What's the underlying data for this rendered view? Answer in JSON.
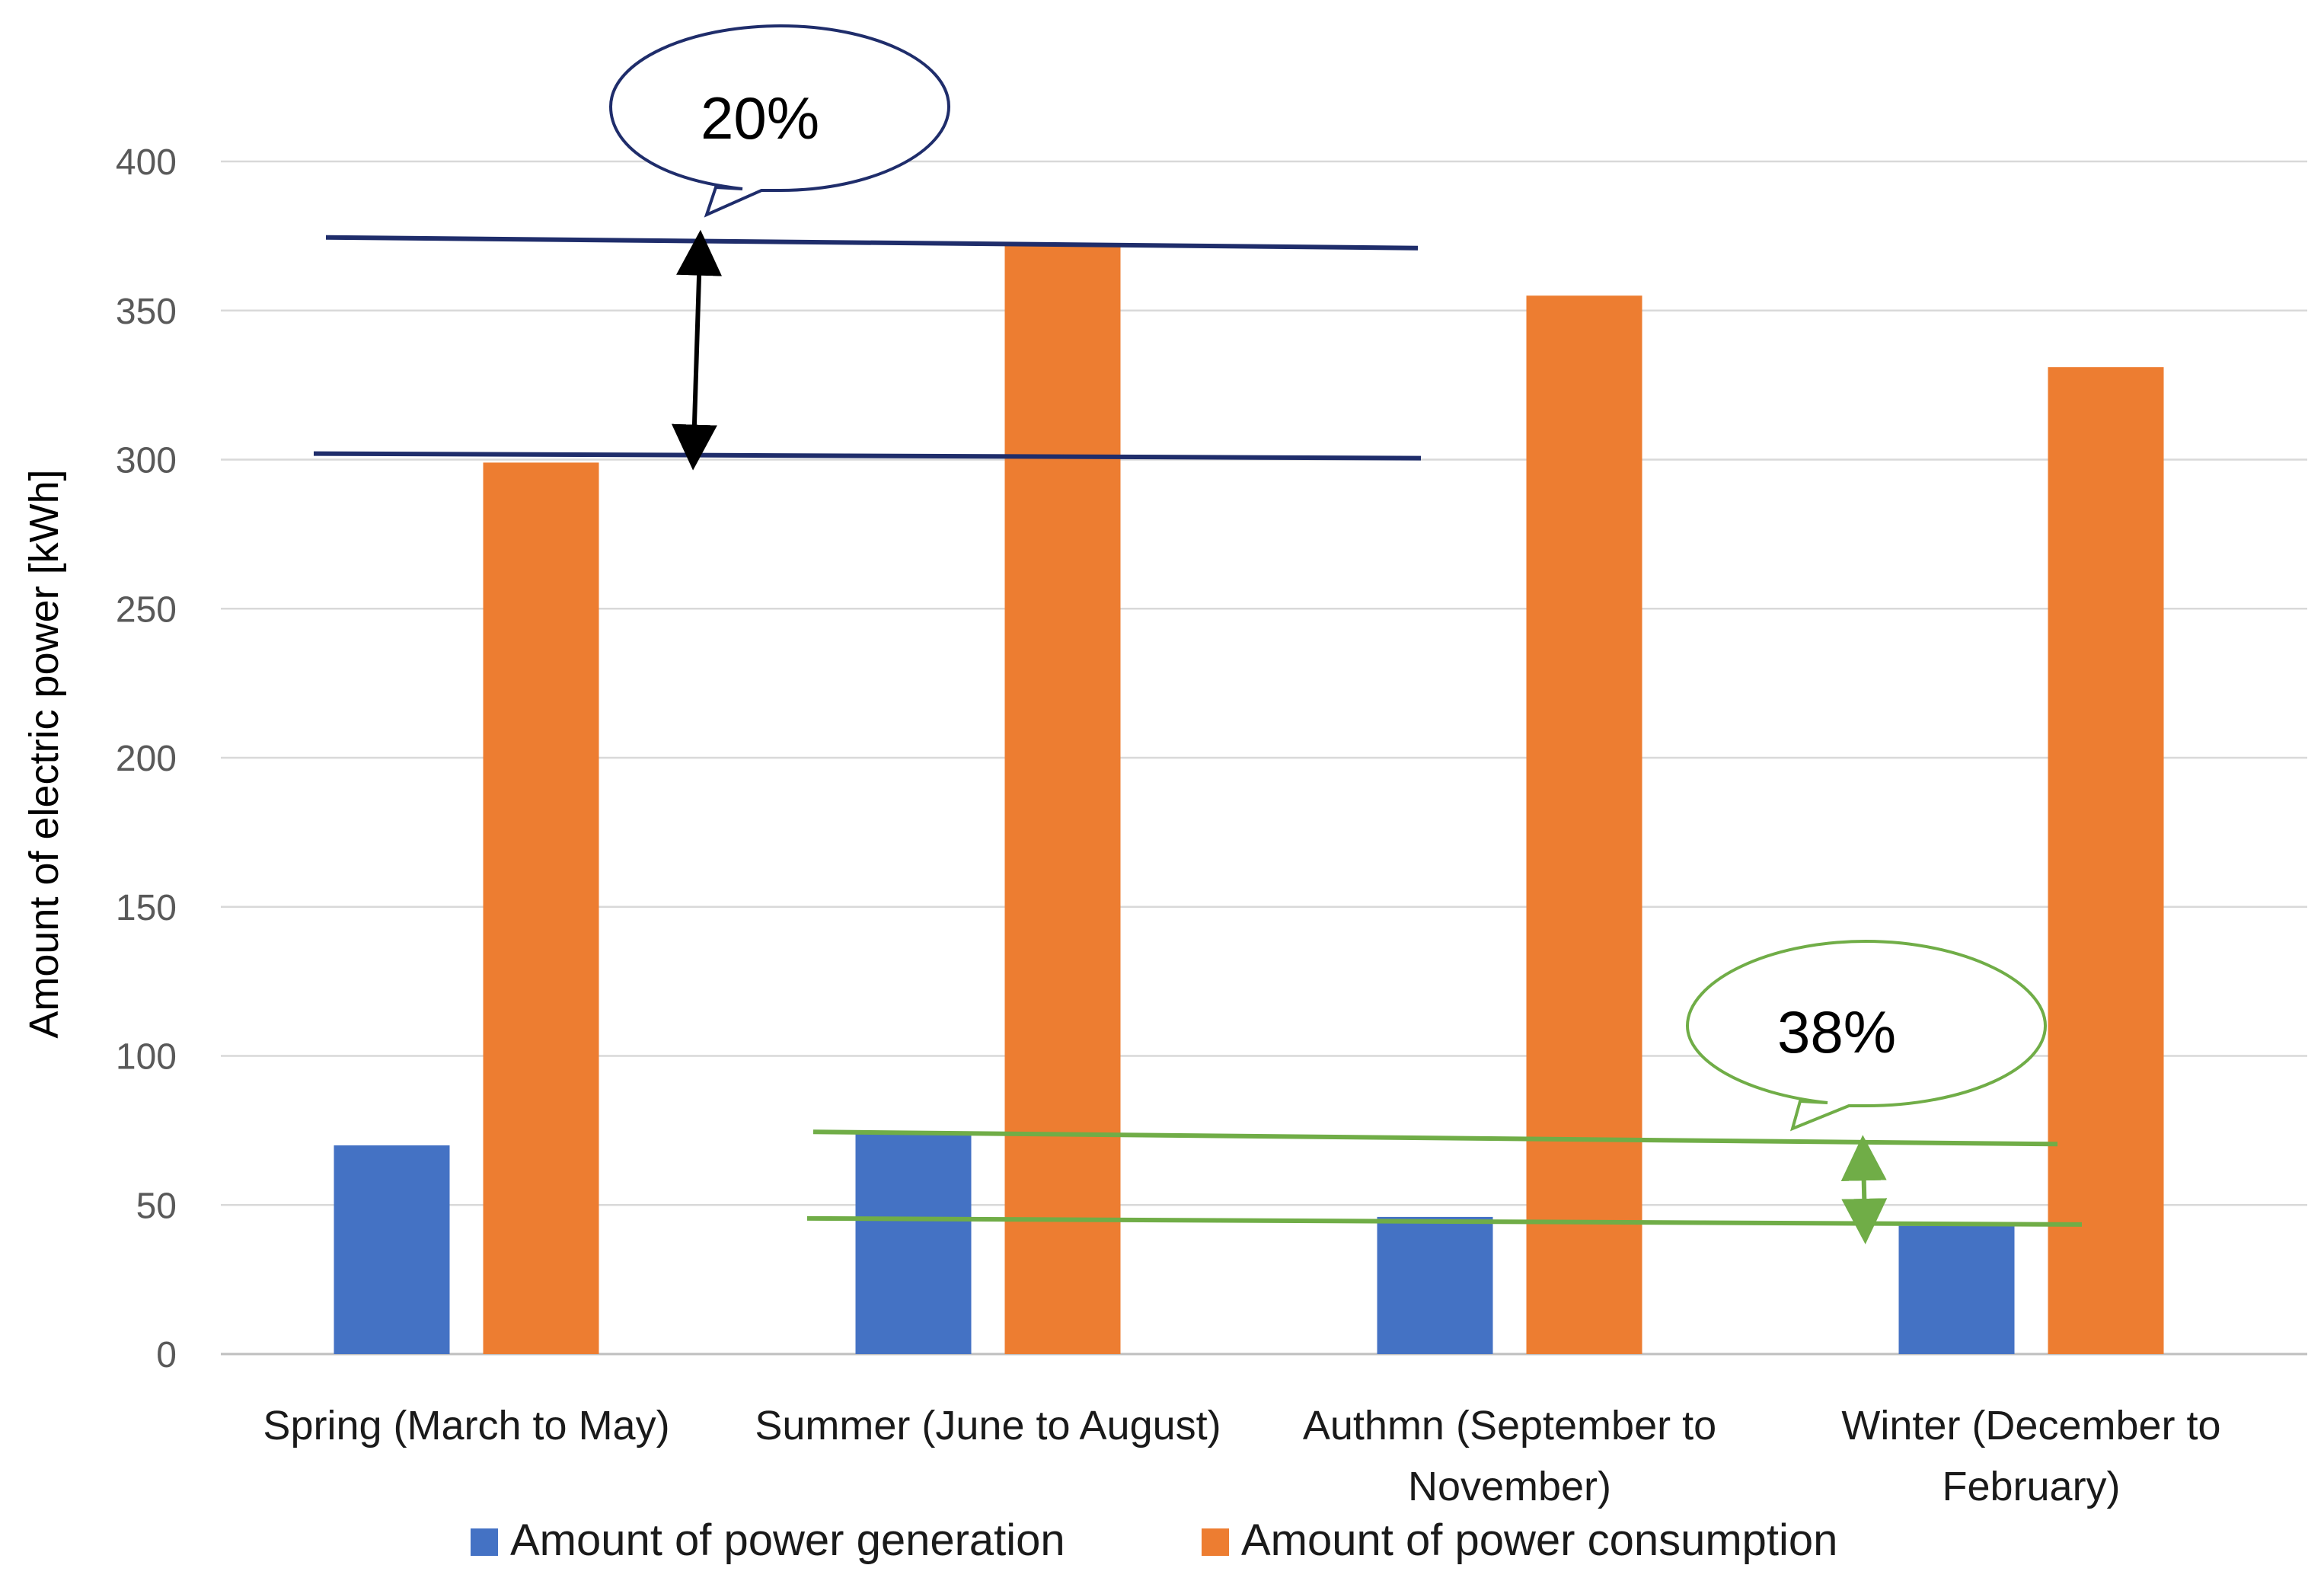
{
  "chart_data": {
    "type": "bar",
    "categories": [
      [
        "Spring (March to May)"
      ],
      [
        "Summer (June to August)"
      ],
      [
        "Authmn (September to",
        "November)"
      ],
      [
        "Winter (December to",
        "February)"
      ]
    ],
    "series": [
      {
        "name": "Amount of power generation",
        "color": "#4472c4",
        "values": [
          70,
          74,
          46,
          43
        ]
      },
      {
        "name": "Amount of power consumption",
        "color": "#ed7d31",
        "values": [
          299,
          372,
          355,
          331
        ]
      }
    ],
    "title": "",
    "xlabel": "",
    "ylabel": "Amount of electric power [kWh]",
    "ylim": [
      0,
      400
    ],
    "yticks": [
      0,
      50,
      100,
      150,
      200,
      250,
      300,
      350,
      400
    ],
    "grid": true,
    "legend": "bottom",
    "annotations": [
      {
        "text": "20%",
        "color": "#1f2d6b",
        "arrow_color": "#000000",
        "from": 301,
        "to": 373
      },
      {
        "text": "38%",
        "color": "#70ad47",
        "arrow_color": "#70ad47",
        "from": 46,
        "to": 74
      }
    ]
  }
}
